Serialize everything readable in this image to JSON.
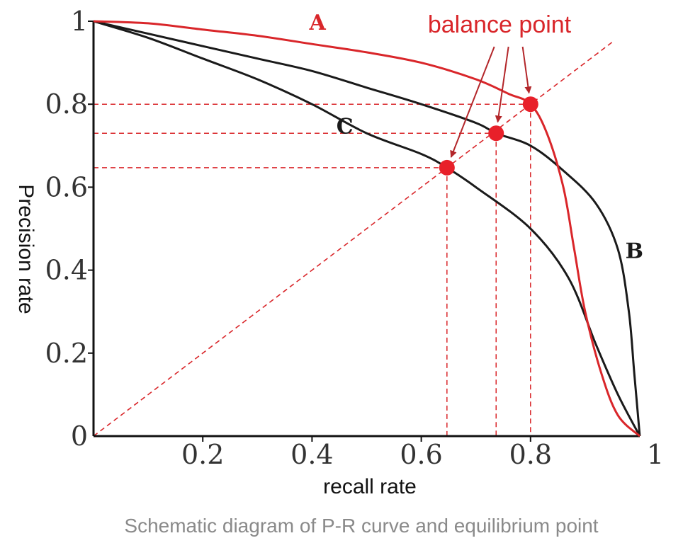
{
  "chart_data": {
    "type": "line",
    "title": "",
    "caption": "Schematic diagram of P-R curve and equilibrium point",
    "xlabel": "recall rate",
    "ylabel": "Precision rate",
    "xlim": [
      0,
      1
    ],
    "ylim": [
      0,
      1
    ],
    "x_ticks": [
      {
        "value": 0.2,
        "label": "0.2"
      },
      {
        "value": 0.4,
        "label": "0.4"
      },
      {
        "value": 0.6,
        "label": "0.6"
      },
      {
        "value": 0.8,
        "label": "0.8"
      },
      {
        "value": 1,
        "label": "1"
      }
    ],
    "y_ticks": [
      {
        "value": 0,
        "label": "0"
      },
      {
        "value": 0.2,
        "label": "0.2"
      },
      {
        "value": 0.4,
        "label": "0.4"
      },
      {
        "value": 0.6,
        "label": "0.6"
      },
      {
        "value": 0.8,
        "label": "0.8"
      },
      {
        "value": 1,
        "label": "1"
      }
    ],
    "series": [
      {
        "name": "A",
        "color": "#d9262a",
        "points": [
          [
            0,
            1
          ],
          [
            0.1,
            0.995
          ],
          [
            0.2,
            0.98
          ],
          [
            0.3,
            0.965
          ],
          [
            0.4,
            0.945
          ],
          [
            0.5,
            0.925
          ],
          [
            0.6,
            0.9
          ],
          [
            0.7,
            0.86
          ],
          [
            0.76,
            0.825
          ],
          [
            0.8,
            0.8
          ],
          [
            0.83,
            0.73
          ],
          [
            0.86,
            0.6
          ],
          [
            0.88,
            0.45
          ],
          [
            0.9,
            0.3
          ],
          [
            0.93,
            0.15
          ],
          [
            0.96,
            0.05
          ],
          [
            1,
            0
          ]
        ],
        "label_at": [
          0.41,
          1.0
        ]
      },
      {
        "name": "B",
        "color": "#1a1a1a",
        "points": [
          [
            0,
            1
          ],
          [
            0.1,
            0.97
          ],
          [
            0.2,
            0.94
          ],
          [
            0.3,
            0.91
          ],
          [
            0.4,
            0.88
          ],
          [
            0.5,
            0.84
          ],
          [
            0.6,
            0.8
          ],
          [
            0.7,
            0.755
          ],
          [
            0.737,
            0.73
          ],
          [
            0.8,
            0.7
          ],
          [
            0.86,
            0.64
          ],
          [
            0.92,
            0.56
          ],
          [
            0.96,
            0.45
          ],
          [
            0.98,
            0.3
          ],
          [
            0.99,
            0.15
          ],
          [
            1,
            0
          ]
        ],
        "label_at": [
          0.99,
          0.45
        ]
      },
      {
        "name": "C",
        "color": "#1a1a1a",
        "points": [
          [
            0,
            1
          ],
          [
            0.1,
            0.96
          ],
          [
            0.2,
            0.91
          ],
          [
            0.3,
            0.86
          ],
          [
            0.4,
            0.8
          ],
          [
            0.5,
            0.73
          ],
          [
            0.6,
            0.68
          ],
          [
            0.647,
            0.647
          ],
          [
            0.7,
            0.6
          ],
          [
            0.8,
            0.5
          ],
          [
            0.87,
            0.38
          ],
          [
            0.92,
            0.22
          ],
          [
            0.96,
            0.1
          ],
          [
            1,
            0
          ]
        ],
        "label_at": [
          0.46,
          0.75
        ]
      }
    ],
    "diagonal": {
      "from": [
        0,
        0
      ],
      "to": [
        0.95,
        0.95
      ],
      "color": "#d9262a",
      "style": "dashed"
    },
    "balance_points": [
      {
        "x": 0.647,
        "y": 0.647
      },
      {
        "x": 0.737,
        "y": 0.73
      },
      {
        "x": 0.8,
        "y": 0.8
      }
    ],
    "annotation": {
      "text": "balance point",
      "color": "#d9262a",
      "at": [
        0.77,
        1.0
      ]
    }
  }
}
